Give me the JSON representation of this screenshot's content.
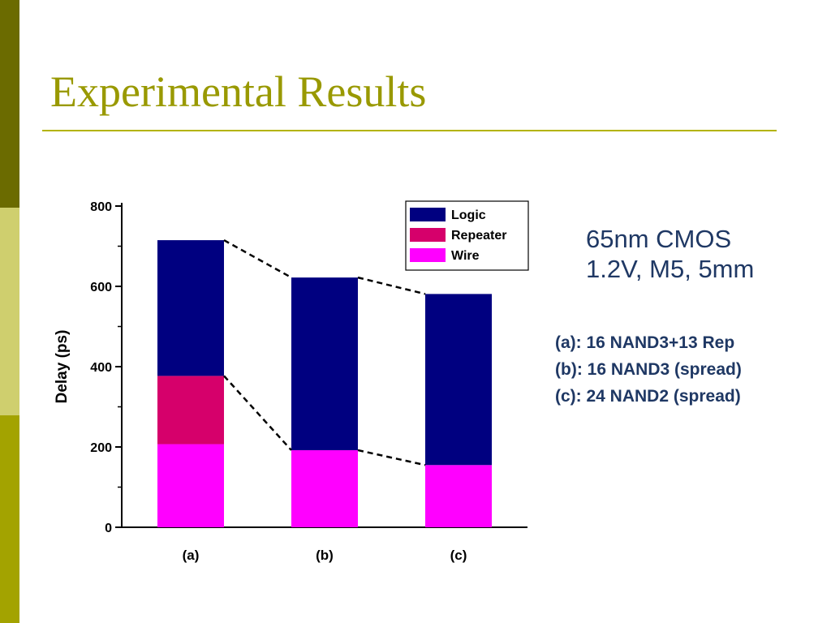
{
  "slide": {
    "title": "Experimental Results",
    "info_lines": [
      "65nm CMOS",
      "1.2V, M5, 5mm"
    ],
    "case_lines": [
      "(a): 16 NAND3+13 Rep",
      "(b): 16 NAND3 (spread)",
      "(c): 24 NAND2 (spread)"
    ]
  },
  "chart_data": {
    "type": "bar",
    "stacked": true,
    "categories": [
      "(a)",
      "(b)",
      "(c)"
    ],
    "series": [
      {
        "name": "Wire",
        "color": "#ff00ff",
        "values": [
          207,
          192,
          155
        ]
      },
      {
        "name": "Repeater",
        "color": "#d6006b",
        "values": [
          170,
          0,
          0
        ]
      },
      {
        "name": "Logic",
        "color": "#000080",
        "values": [
          338,
          430,
          426
        ]
      }
    ],
    "legend_order": [
      "Logic",
      "Repeater",
      "Wire"
    ],
    "legend_position": "top-right",
    "ylabel": "Delay (ps)",
    "xlabel": "",
    "ylim": [
      0,
      800
    ],
    "yticks": [
      0,
      200,
      400,
      600,
      800
    ],
    "dashed_connectors": true,
    "grid": false
  }
}
